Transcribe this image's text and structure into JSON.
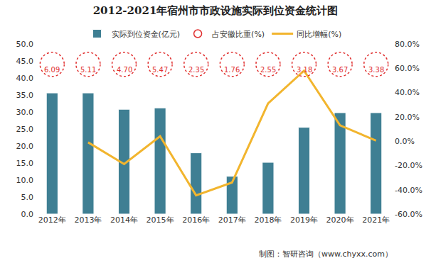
{
  "chart_data": {
    "type": "bar",
    "title": "2012-2021年宿州市市政设施实际到位资金统计图",
    "categories": [
      "2012年",
      "2013年",
      "2014年",
      "2015年",
      "2016年",
      "2017年",
      "2018年",
      "2019年",
      "2020年",
      "2021年"
    ],
    "series": [
      {
        "name": "实际到位资金(亿元)",
        "type": "bar",
        "color": "#3f7f93",
        "values": [
          35.6,
          35.6,
          30.8,
          31.2,
          18.0,
          11.1,
          15.2,
          25.5,
          29.8,
          29.8
        ]
      },
      {
        "name": "占安徽比重(%)",
        "type": "text",
        "color": "#e03030",
        "marker": "circle",
        "values": [
          6.09,
          5.11,
          4.7,
          5.47,
          2.35,
          1.76,
          2.55,
          3.18,
          3.67,
          3.38
        ],
        "value_labels": [
          "6.09",
          "5.11",
          "4.70",
          "5.47",
          "2.35",
          "1.76",
          "2.55",
          "3.18",
          "3.67",
          "3.38"
        ]
      },
      {
        "name": "同比增幅(%)",
        "type": "line",
        "axis": "y2",
        "color": "#f2b52e",
        "values": [
          null,
          -1.0,
          -18.9,
          4.0,
          -44.6,
          -34.0,
          31.0,
          58.0,
          13.0,
          0.5
        ]
      }
    ],
    "ylim": [
      0,
      50
    ],
    "yticks": [
      {
        "value": 0,
        "label": "0.0"
      },
      {
        "value": 5,
        "label": "5.0"
      },
      {
        "value": 10,
        "label": "10.0"
      },
      {
        "value": 15,
        "label": "15.0"
      },
      {
        "value": 20,
        "label": "20.0"
      },
      {
        "value": 25,
        "label": "25.0"
      },
      {
        "value": 30,
        "label": "30.0"
      },
      {
        "value": 35,
        "label": "35.0"
      },
      {
        "value": 40,
        "label": "40.0"
      },
      {
        "value": 45,
        "label": "45.0"
      },
      {
        "value": 50,
        "label": "50.0"
      }
    ],
    "y2lim": [
      -60,
      80
    ],
    "y2ticks": [
      {
        "value": -60,
        "label": "-60.0%"
      },
      {
        "value": -40,
        "label": "-40.0%"
      },
      {
        "value": -20,
        "label": "-20.0%"
      },
      {
        "value": 0,
        "label": "0.0%"
      },
      {
        "value": 20,
        "label": "20.0%"
      },
      {
        "value": 40,
        "label": "40.0%"
      },
      {
        "value": 60,
        "label": "60.0%"
      },
      {
        "value": 80,
        "label": "80.0%"
      }
    ],
    "grid": false,
    "legend": "top",
    "source": "制图：智研咨询（www.chyxx.com）"
  }
}
